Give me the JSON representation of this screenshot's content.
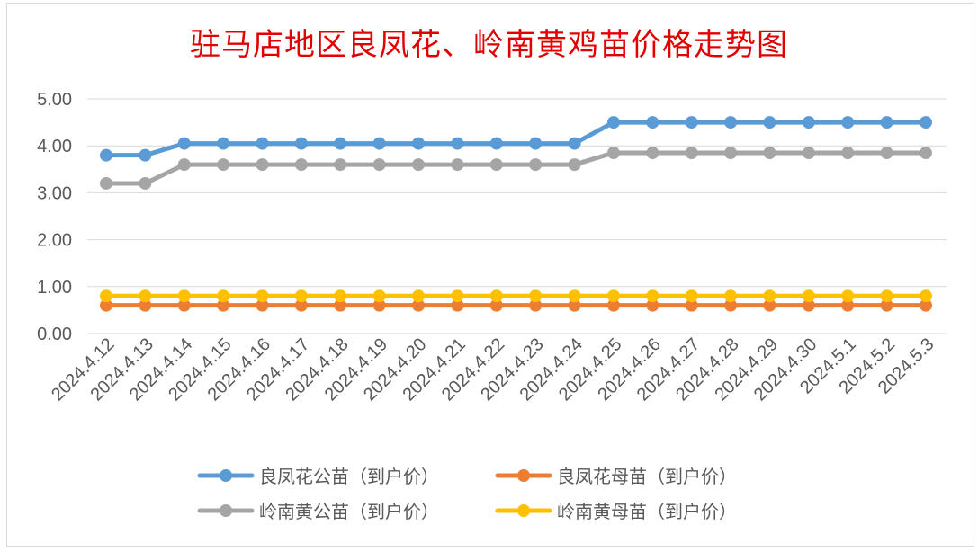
{
  "chart_data": {
    "type": "line",
    "title": "驻马店地区良凤花、岭南黄鸡苗价格走势图",
    "xlabel": "",
    "ylabel": "",
    "categories": [
      "2024.4.12",
      "2024.4.13",
      "2024.4.14",
      "2024.4.15",
      "2024.4.16",
      "2024.4.17",
      "2024.4.18",
      "2024.4.19",
      "2024.4.20",
      "2024.4.21",
      "2024.4.22",
      "2024.4.23",
      "2024.4.24",
      "2024.4.25",
      "2024.4.26",
      "2024.4.27",
      "2024.4.28",
      "2024.4.29",
      "2024.4.30",
      "2024.5.1",
      "2024.5.2",
      "2024.5.3"
    ],
    "ylim": [
      0,
      5
    ],
    "yticks": [
      "0.00",
      "1.00",
      "2.00",
      "3.00",
      "4.00",
      "5.00"
    ],
    "grid": true,
    "legend_position": "bottom",
    "series": [
      {
        "name": "良凤花公苗（到户价）",
        "color": "#5b9bd5",
        "values": [
          3.8,
          3.8,
          4.05,
          4.05,
          4.05,
          4.05,
          4.05,
          4.05,
          4.05,
          4.05,
          4.05,
          4.05,
          4.05,
          4.5,
          4.5,
          4.5,
          4.5,
          4.5,
          4.5,
          4.5,
          4.5,
          4.5
        ]
      },
      {
        "name": "良凤花母苗（到户价）",
        "color": "#ed7d31",
        "values": [
          0.6,
          0.6,
          0.6,
          0.6,
          0.6,
          0.6,
          0.6,
          0.6,
          0.6,
          0.6,
          0.6,
          0.6,
          0.6,
          0.6,
          0.6,
          0.6,
          0.6,
          0.6,
          0.6,
          0.6,
          0.6,
          0.6
        ]
      },
      {
        "name": "岭南黄公苗（到户价）",
        "color": "#a5a5a5",
        "values": [
          3.2,
          3.2,
          3.6,
          3.6,
          3.6,
          3.6,
          3.6,
          3.6,
          3.6,
          3.6,
          3.6,
          3.6,
          3.6,
          3.85,
          3.85,
          3.85,
          3.85,
          3.85,
          3.85,
          3.85,
          3.85,
          3.85
        ]
      },
      {
        "name": "岭南黄母苗（到户价）",
        "color": "#ffc000",
        "values": [
          0.8,
          0.8,
          0.8,
          0.8,
          0.8,
          0.8,
          0.8,
          0.8,
          0.8,
          0.8,
          0.8,
          0.8,
          0.8,
          0.8,
          0.8,
          0.8,
          0.8,
          0.8,
          0.8,
          0.8,
          0.8,
          0.8
        ]
      }
    ]
  }
}
